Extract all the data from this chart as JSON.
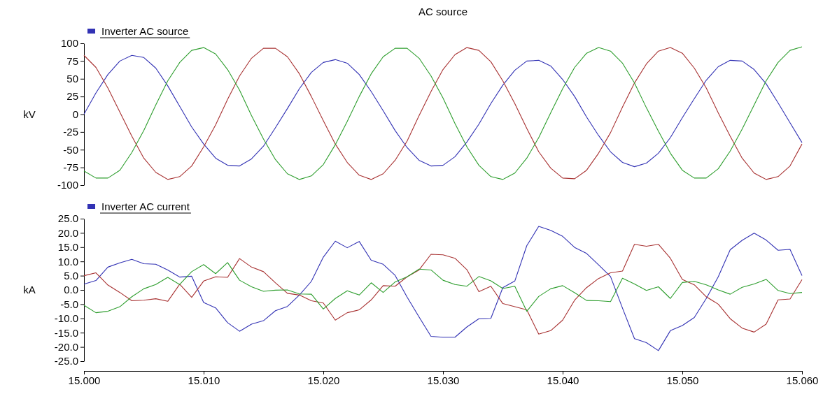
{
  "chart_data": [
    {
      "type": "line",
      "title": "AC source",
      "ylabel": "kV",
      "legend": "top left",
      "grid": false,
      "tick_labels": "y",
      "line_style": "solid",
      "x": [
        15.0,
        15.001,
        15.002,
        15.003,
        15.004,
        15.005,
        15.006,
        15.007,
        15.008,
        15.009,
        15.01,
        15.011,
        15.012,
        15.013,
        15.014,
        15.015,
        15.016,
        15.017,
        15.018,
        15.019,
        15.02,
        15.021,
        15.022,
        15.023,
        15.024,
        15.025,
        15.026,
        15.027,
        15.028,
        15.029,
        15.03,
        15.031,
        15.032,
        15.033,
        15.034,
        15.035,
        15.036,
        15.037,
        15.038,
        15.039,
        15.04,
        15.041,
        15.042,
        15.043,
        15.044,
        15.045,
        15.046,
        15.047,
        15.048,
        15.049,
        15.05,
        15.051,
        15.052,
        15.053,
        15.054,
        15.055,
        15.056,
        15.057,
        15.058,
        15.059,
        15.06
      ],
      "xlim": [
        15.0,
        15.06
      ],
      "ylim": [
        -100,
        100
      ],
      "yticks": [
        -100,
        -75,
        -50,
        -25,
        0,
        25,
        50,
        75,
        100
      ],
      "series": [
        {
          "name": "Inverter AC source",
          "color": "#3232b4",
          "values": [
            0,
            30,
            56,
            75,
            83,
            80,
            65,
            40,
            11,
            -18,
            -42,
            -62,
            -72,
            -73,
            -63,
            -45,
            -19,
            8,
            36,
            59,
            73,
            77,
            72,
            56,
            32,
            5,
            -23,
            -47,
            -65,
            -73,
            -72,
            -60,
            -39,
            -14,
            15,
            41,
            62,
            75,
            76,
            68,
            49,
            25,
            -4,
            -30,
            -53,
            -68,
            -74,
            -69,
            -55,
            -33,
            -5,
            22,
            48,
            67,
            76,
            75,
            63,
            43,
            16,
            -12,
            -40
          ]
        },
        {
          "color": "#a83232",
          "values": [
            83,
            66,
            37,
            3,
            -31,
            -62,
            -82,
            -92,
            -88,
            -73,
            -46,
            -15,
            21,
            54,
            79,
            93,
            93,
            81,
            57,
            25,
            -9,
            -42,
            -68,
            -86,
            -92,
            -84,
            -65,
            -38,
            -2,
            32,
            63,
            84,
            94,
            90,
            74,
            47,
            15,
            -20,
            -53,
            -76,
            -90,
            -91,
            -79,
            -55,
            -26,
            10,
            44,
            71,
            89,
            94,
            86,
            65,
            37,
            2,
            -31,
            -62,
            -83,
            -92,
            -88,
            -73,
            -42
          ]
        },
        {
          "color": "#2e9e2e",
          "values": [
            -80,
            -90,
            -90,
            -79,
            -54,
            -23,
            13,
            47,
            73,
            90,
            94,
            85,
            63,
            34,
            -2,
            -35,
            -64,
            -84,
            -92,
            -87,
            -71,
            -43,
            -10,
            25,
            57,
            81,
            93,
            93,
            79,
            54,
            23,
            -13,
            -46,
            -72,
            -88,
            -92,
            -83,
            -62,
            -33,
            2,
            36,
            66,
            86,
            94,
            89,
            72,
            44,
            9,
            -24,
            -55,
            -79,
            -90,
            -90,
            -77,
            -52,
            -21,
            13,
            47,
            73,
            90,
            95
          ]
        }
      ]
    },
    {
      "type": "line",
      "ylabel": "kA",
      "legend": "top left",
      "grid": false,
      "line_style": "solid",
      "x": [
        15.0,
        15.001,
        15.002,
        15.003,
        15.004,
        15.005,
        15.006,
        15.007,
        15.008,
        15.009,
        15.01,
        15.011,
        15.012,
        15.013,
        15.014,
        15.015,
        15.016,
        15.017,
        15.018,
        15.019,
        15.02,
        15.021,
        15.022,
        15.023,
        15.024,
        15.025,
        15.026,
        15.027,
        15.028,
        15.029,
        15.03,
        15.031,
        15.032,
        15.033,
        15.034,
        15.035,
        15.036,
        15.037,
        15.038,
        15.039,
        15.04,
        15.041,
        15.042,
        15.043,
        15.044,
        15.045,
        15.046,
        15.047,
        15.048,
        15.049,
        15.05,
        15.051,
        15.052,
        15.053,
        15.054,
        15.055,
        15.056,
        15.057,
        15.058,
        15.059,
        15.06
      ],
      "xlim": [
        15.0,
        15.06
      ],
      "xticks": [
        {
          "value": 15.0,
          "label": "15.000"
        },
        {
          "value": 15.01,
          "label": "15.010"
        },
        {
          "value": 15.02,
          "label": "15.020"
        },
        {
          "value": 15.03,
          "label": "15.030"
        },
        {
          "value": 15.04,
          "label": "15.040"
        },
        {
          "value": 15.05,
          "label": "15.050"
        },
        {
          "value": 15.06,
          "label": "15.060"
        }
      ],
      "ylim": [
        -25,
        25
      ],
      "yticks": [
        {
          "value": -25,
          "label": "-25.0"
        },
        {
          "value": -20,
          "label": "-20.0"
        },
        {
          "value": -15,
          "label": "-15.0"
        },
        {
          "value": -10,
          "label": "-10.0"
        },
        {
          "value": -5,
          "label": "-5.0"
        },
        {
          "value": 0,
          "label": "0.0"
        },
        {
          "value": 5,
          "label": "5.0"
        },
        {
          "value": 10,
          "label": "10.0"
        },
        {
          "value": 15,
          "label": "15.0"
        },
        {
          "value": 20,
          "label": "20.0"
        },
        {
          "value": 25,
          "label": "25.0"
        }
      ],
      "series": [
        {
          "name": "Inverter AC current",
          "color": "#3232b4",
          "values": [
            2.0,
            3.3,
            8.0,
            9.5,
            10.7,
            9.2,
            9.0,
            7.0,
            4.5,
            4.8,
            -4.4,
            -6.3,
            -11.5,
            -14.5,
            -12.0,
            -10.8,
            -7.3,
            -5.8,
            -1.8,
            3.0,
            11.5,
            17.1,
            14.8,
            17.0,
            10.4,
            9.0,
            5.1,
            -2.5,
            -9.5,
            -16.3,
            -16.6,
            -16.6,
            -13.0,
            -10.1,
            -10.0,
            0.8,
            3.1,
            15.5,
            22.3,
            20.9,
            18.8,
            14.9,
            12.8,
            8.8,
            4.7,
            -6.4,
            -17.1,
            -18.5,
            -21.3,
            -14.3,
            -12.5,
            -9.7,
            -3.0,
            4.6,
            14.1,
            17.4,
            19.9,
            17.5,
            13.9,
            14.2,
            5.0
          ]
        },
        {
          "color": "#a83232",
          "values": [
            5.0,
            6.0,
            1.7,
            -0.9,
            -3.8,
            -3.6,
            -3.1,
            -4.0,
            2.0,
            -2.6,
            3.1,
            4.6,
            4.4,
            11.0,
            8.0,
            6.4,
            2.5,
            -1.2,
            -1.8,
            -3.8,
            -4.6,
            -10.6,
            -8.0,
            -7.0,
            -3.5,
            1.5,
            1.3,
            4.6,
            7.0,
            12.5,
            12.3,
            11.1,
            7.1,
            -0.6,
            1.3,
            -4.8,
            -5.9,
            -7.0,
            -15.5,
            -14.3,
            -10.6,
            -3.6,
            0.8,
            4.0,
            6.0,
            6.6,
            16.0,
            15.3,
            16.0,
            11.1,
            3.7,
            1.8,
            -2.4,
            -5.0,
            -10.1,
            -13.4,
            -14.8,
            -12.0,
            -3.5,
            -3.2,
            3.6
          ]
        },
        {
          "color": "#2e9e2e",
          "values": [
            -5.4,
            -8.0,
            -7.5,
            -5.9,
            -2.4,
            0.4,
            1.9,
            4.4,
            1.9,
            6.4,
            8.9,
            5.7,
            9.6,
            3.4,
            1.1,
            -0.5,
            -0.1,
            0.0,
            -1.4,
            -1.5,
            -6.7,
            -3.0,
            -0.3,
            -1.8,
            2.5,
            -0.9,
            2.8,
            4.6,
            7.3,
            7.0,
            3.4,
            1.9,
            1.3,
            4.7,
            3.2,
            0.5,
            1.3,
            -7.5,
            -2.3,
            0.4,
            1.5,
            -1.0,
            -3.7,
            -3.8,
            -4.1,
            4.1,
            2.1,
            -0.2,
            1.1,
            -3.0,
            2.6,
            3.0,
            1.8,
            0.0,
            -1.5,
            0.9,
            2.1,
            3.7,
            -0.2,
            -1.3,
            -0.9
          ]
        }
      ]
    }
  ]
}
